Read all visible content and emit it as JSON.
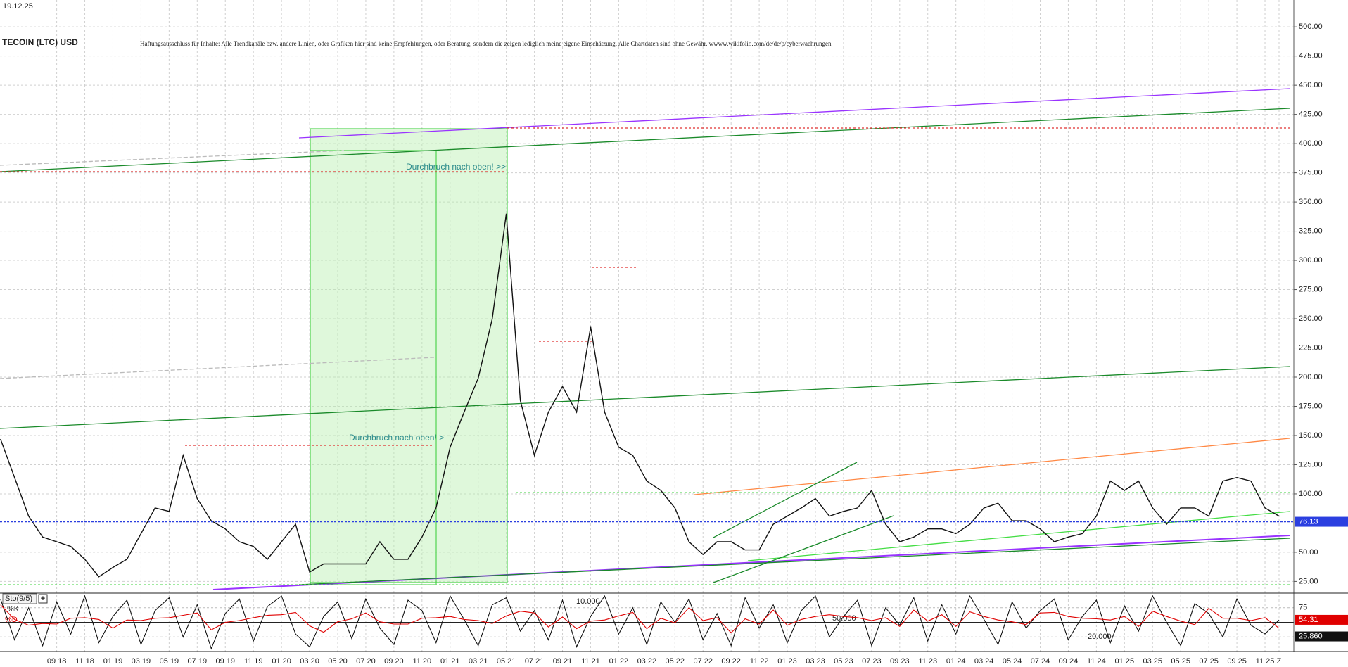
{
  "date": "19.12.25",
  "chart_data": [
    {
      "type": "line",
      "title": "TECOIN (LTC) USD",
      "subtitle": "Haftungsausschluss für Inhalte: Alle Trendkanäle bzw. andere Linien, oder Grafiken hier sind keine Empfehlungen, oder Beratung, sondern die zeigen lediglich meine eigene Einschätzung. Alle Chartdaten sind ohne Gewähr.  wwww.wikifolio.com/de/de/p/cyberwaehrungen",
      "annotations": [
        "Durchbruch nach oben! >>",
        "Durchbruch nach oben! >"
      ],
      "x": [
        "2018-05",
        "2018-06",
        "2018-07",
        "2018-08",
        "2018-09",
        "2018-10",
        "2018-11",
        "2018-12",
        "2019-01",
        "2019-02",
        "2019-03",
        "2019-04",
        "2019-05",
        "2019-06",
        "2019-07",
        "2019-08",
        "2019-09",
        "2019-10",
        "2019-11",
        "2019-12",
        "2020-01",
        "2020-02",
        "2020-03",
        "2020-04",
        "2020-05",
        "2020-06",
        "2020-07",
        "2020-08",
        "2020-09",
        "2020-10",
        "2020-11",
        "2020-12",
        "2021-01",
        "2021-02",
        "2021-03",
        "2021-04",
        "2021-05",
        "2021-06",
        "2021-07",
        "2021-08",
        "2021-09",
        "2021-10",
        "2021-11",
        "2021-12",
        "2022-01",
        "2022-02",
        "2022-03",
        "2022-04",
        "2022-05",
        "2022-06",
        "2022-07",
        "2022-08",
        "2022-09",
        "2022-10",
        "2022-11",
        "2022-12",
        "2023-01",
        "2023-02",
        "2023-03",
        "2023-04",
        "2023-05",
        "2023-06",
        "2023-07",
        "2023-08",
        "2023-09",
        "2023-10",
        "2023-11",
        "2023-12",
        "2024-01",
        "2024-02",
        "2024-03",
        "2024-04",
        "2024-05",
        "2024-06",
        "2024-07",
        "2024-08",
        "2024-09",
        "2024-10",
        "2024-11",
        "2024-12",
        "2025-01",
        "2025-02",
        "2025-03",
        "2025-04",
        "2025-05",
        "2025-06",
        "2025-07",
        "2025-08",
        "2025-09",
        "2025-10",
        "2025-11",
        "2025-12"
      ],
      "values": [
        147,
        114,
        81,
        63,
        59,
        55,
        44,
        29,
        37,
        44,
        66,
        88,
        85,
        133,
        96,
        77,
        70,
        59,
        55,
        44,
        59,
        74,
        33,
        40,
        40,
        40,
        40,
        59,
        44,
        44,
        63,
        88,
        140,
        170,
        199,
        250,
        340,
        180,
        133,
        170,
        192,
        170,
        243,
        170,
        140,
        133,
        111,
        103,
        88,
        59,
        48,
        59,
        59,
        52,
        52,
        74,
        81,
        88,
        96,
        81,
        85,
        88,
        103,
        74,
        59,
        63,
        70,
        70,
        66,
        74,
        88,
        92,
        77,
        77,
        70,
        59,
        63,
        66,
        81,
        111,
        103,
        111,
        88,
        74,
        88,
        88,
        81,
        111,
        114,
        111,
        88,
        81
      ],
      "color": "#111111",
      "ylim": [
        15,
        523
      ],
      "yticks": [
        {
          "value": 25,
          "label": "25.00"
        },
        {
          "value": 50,
          "label": "50.00"
        },
        {
          "value": 75,
          "label": "75.00"
        },
        {
          "value": 100,
          "label": "100.00"
        },
        {
          "value": 125,
          "label": "125.00"
        },
        {
          "value": 150,
          "label": "150.00"
        },
        {
          "value": 175,
          "label": "175.00"
        },
        {
          "value": 200,
          "label": "200.00"
        },
        {
          "value": 225,
          "label": "225.00"
        },
        {
          "value": 250,
          "label": "250.00"
        },
        {
          "value": 275,
          "label": "275.00"
        },
        {
          "value": 300,
          "label": "300.00"
        },
        {
          "value": 325,
          "label": "325.00"
        },
        {
          "value": 350,
          "label": "350.00"
        },
        {
          "value": 375,
          "label": "375.00"
        },
        {
          "value": 400,
          "label": "400.00"
        },
        {
          "value": 425,
          "label": "425.00"
        },
        {
          "value": 450,
          "label": "450.00"
        },
        {
          "value": 475,
          "label": "475.00"
        },
        {
          "value": 500,
          "label": "500.00"
        }
      ],
      "xticks": [
        {
          "value": "2018-09",
          "label": "09 18"
        },
        {
          "value": "2018-11",
          "label": "11 18"
        },
        {
          "value": "2019-01",
          "label": "01 19"
        },
        {
          "value": "2019-03",
          "label": "03 19"
        },
        {
          "value": "2019-05",
          "label": "05 19"
        },
        {
          "value": "2019-07",
          "label": "07 19"
        },
        {
          "value": "2019-09",
          "label": "09 19"
        },
        {
          "value": "2019-11",
          "label": "11 19"
        },
        {
          "value": "2020-01",
          "label": "01 20"
        },
        {
          "value": "2020-03",
          "label": "03 20"
        },
        {
          "value": "2020-05",
          "label": "05 20"
        },
        {
          "value": "2020-07",
          "label": "07 20"
        },
        {
          "value": "2020-09",
          "label": "09 20"
        },
        {
          "value": "2020-11",
          "label": "11 20"
        },
        {
          "value": "2021-01",
          "label": "01 21"
        },
        {
          "value": "2021-03",
          "label": "03 21"
        },
        {
          "value": "2021-05",
          "label": "05 21"
        },
        {
          "value": "2021-07",
          "label": "07 21"
        },
        {
          "value": "2021-09",
          "label": "09 21"
        },
        {
          "value": "2021-11",
          "label": "11 21"
        },
        {
          "value": "2022-01",
          "label": "01 22"
        },
        {
          "value": "2022-03",
          "label": "03 22"
        },
        {
          "value": "2022-05",
          "label": "05 22"
        },
        {
          "value": "2022-07",
          "label": "07 22"
        },
        {
          "value": "2022-09",
          "label": "09 22"
        },
        {
          "value": "2022-11",
          "label": "11 22"
        },
        {
          "value": "2023-01",
          "label": "01 23"
        },
        {
          "value": "2023-03",
          "label": "03 23"
        },
        {
          "value": "2023-05",
          "label": "05 23"
        },
        {
          "value": "2023-07",
          "label": "07 23"
        },
        {
          "value": "2023-09",
          "label": "09 23"
        },
        {
          "value": "2023-11",
          "label": "11 23"
        },
        {
          "value": "2024-01",
          "label": "01 24"
        },
        {
          "value": "2024-03",
          "label": "03 24"
        },
        {
          "value": "2024-05",
          "label": "05 24"
        },
        {
          "value": "2024-07",
          "label": "07 24"
        },
        {
          "value": "2024-09",
          "label": "09 24"
        },
        {
          "value": "2024-11",
          "label": "11 24"
        },
        {
          "value": "2025-01",
          "label": "01 25"
        },
        {
          "value": "2025-03",
          "label": "03 25"
        },
        {
          "value": "2025-05",
          "label": "05 25"
        },
        {
          "value": "2025-07",
          "label": "07 25"
        },
        {
          "value": "2025-09",
          "label": "09 25"
        },
        {
          "value": "2025-11",
          "label": "11 25"
        },
        {
          "value": "2025-12",
          "label": "Z"
        }
      ],
      "grid": true,
      "last_value": 76.13,
      "last_value_color": "#2b3fe0"
    },
    {
      "type": "line",
      "title": "Sto(9/5)",
      "annotations": [
        "10.000",
        "50.000",
        "20.000"
      ],
      "series": [
        {
          "name": "%K",
          "color": "#111111",
          "values": [
            90,
            20,
            75,
            10,
            85,
            30,
            95,
            15,
            60,
            88,
            12,
            70,
            92,
            25,
            80,
            5,
            65,
            90,
            18,
            77,
            95,
            30,
            8,
            60,
            85,
            22,
            90,
            40,
            12,
            88,
            70,
            15,
            95,
            55,
            10,
            80,
            92,
            35,
            70,
            20,
            88,
            8,
            60,
            95,
            30,
            75,
            12,
            85,
            50,
            90,
            20,
            65,
            10,
            92,
            40,
            80,
            15,
            70,
            95,
            25,
            60,
            88,
            10,
            75,
            45,
            92,
            18,
            80,
            30,
            95,
            55,
            12,
            85,
            40,
            70,
            90,
            20,
            60,
            88,
            15,
            78,
            35,
            95,
            50,
            10,
            82,
            65,
            25,
            90,
            45,
            30,
            54
          ]
        },
        {
          "name": "%D",
          "color": "#e00000",
          "values": [
            80,
            55,
            45,
            48,
            47,
            57,
            58,
            55,
            40,
            54,
            53,
            57,
            58,
            62,
            66,
            37,
            50,
            53,
            58,
            62,
            63,
            67,
            44,
            33,
            51,
            56,
            66,
            51,
            47,
            47,
            57,
            58,
            60,
            55,
            53,
            48,
            61,
            69,
            66,
            42,
            59,
            39,
            52,
            54,
            61,
            67,
            39,
            57,
            49,
            75,
            53,
            58,
            32,
            56,
            47,
            71,
            45,
            55,
            60,
            63,
            60,
            58,
            53,
            58,
            43,
            71,
            52,
            63,
            43,
            68,
            60,
            54,
            51,
            46,
            66,
            67,
            60,
            57,
            56,
            54,
            60,
            43,
            69,
            60,
            52,
            46,
            74,
            57,
            57,
            53,
            58,
            40
          ]
        }
      ],
      "ylim": [
        0,
        100
      ],
      "yticks": [
        75,
        50,
        25
      ],
      "markers": [
        {
          "value": 54.31,
          "color": "#e00000"
        },
        {
          "value": 25.86,
          "label": "25.860",
          "color": "#111111"
        }
      ]
    }
  ]
}
